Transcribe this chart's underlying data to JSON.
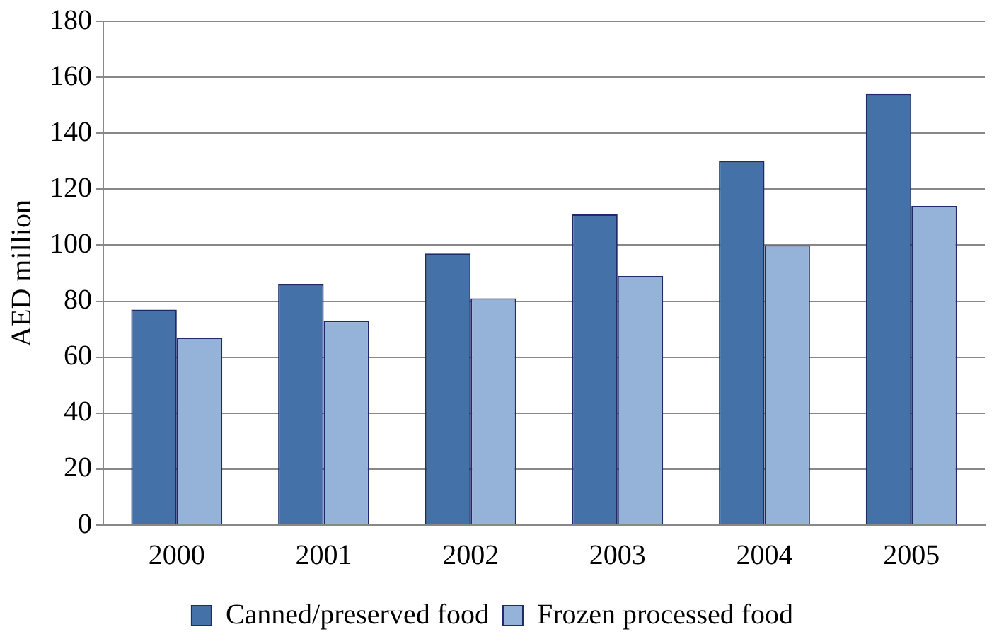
{
  "chart_data": {
    "type": "bar",
    "ylabel": "AED million",
    "categories": [
      "2000",
      "2001",
      "2002",
      "2003",
      "2004",
      "2005"
    ],
    "series": [
      {
        "name": "Canned/preserved food",
        "color": "#4471a7",
        "values": [
          77,
          86,
          97,
          111,
          130,
          154
        ]
      },
      {
        "name": "Frozen processed food",
        "color": "#95b2d8",
        "values": [
          67,
          73,
          81,
          89,
          100,
          114
        ]
      }
    ],
    "ylim": [
      0,
      180
    ],
    "yticks": [
      0,
      20,
      40,
      60,
      80,
      100,
      120,
      140,
      160,
      180
    ],
    "grid": "y",
    "legend": "bottom"
  }
}
